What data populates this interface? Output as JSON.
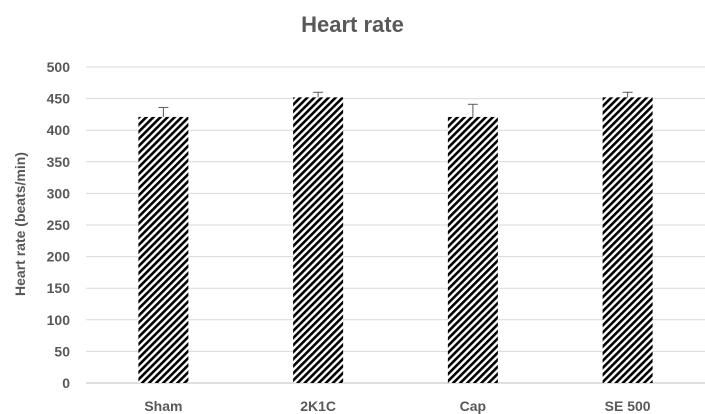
{
  "chart_data": {
    "type": "bar",
    "title": "Heart rate",
    "xlabel": "",
    "ylabel": "Heart rate (beats/min)",
    "categories": [
      "Sham",
      "2K1C",
      "Cap",
      "SE 500"
    ],
    "values": [
      421,
      452,
      421,
      452
    ],
    "error": [
      15,
      8,
      20,
      8
    ],
    "ylim": [
      0,
      500
    ],
    "yticks": [
      0,
      50,
      100,
      150,
      200,
      250,
      300,
      350,
      400,
      450,
      500
    ],
    "grid": true,
    "legend": "none",
    "bar_pattern": "diagonal-hatch",
    "colors": {
      "bar_fill": "#000000",
      "bar_background": "#ffffff",
      "text": "#595959",
      "grid": "#d9d9d9"
    }
  }
}
